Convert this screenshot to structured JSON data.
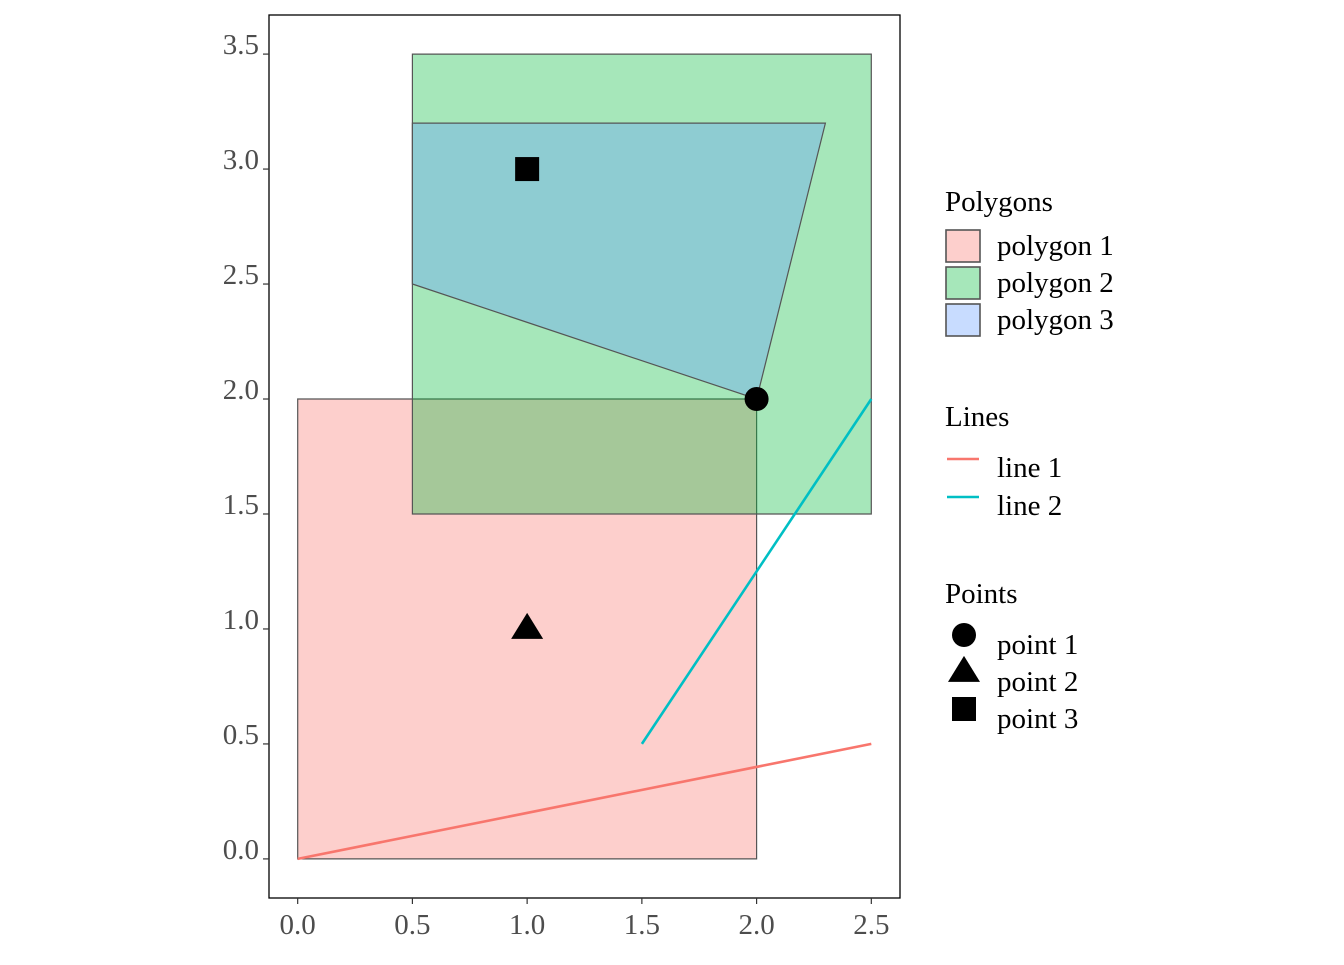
{
  "chart_data": {
    "type": "map",
    "xlim": [
      -0.125,
      2.625
    ],
    "ylim": [
      -0.17,
      3.67
    ],
    "x_ticks": [
      {
        "value": 0.0,
        "label": "0.0"
      },
      {
        "value": 0.5,
        "label": "0.5"
      },
      {
        "value": 1.0,
        "label": "1.0"
      },
      {
        "value": 1.5,
        "label": "1.5"
      },
      {
        "value": 2.0,
        "label": "2.0"
      },
      {
        "value": 2.5,
        "label": "2.5"
      }
    ],
    "y_ticks": [
      {
        "value": 0.0,
        "label": "0.0"
      },
      {
        "value": 0.5,
        "label": "0.5"
      },
      {
        "value": 1.0,
        "label": "1.0"
      },
      {
        "value": 1.5,
        "label": "1.5"
      },
      {
        "value": 2.0,
        "label": "2.0"
      },
      {
        "value": 2.5,
        "label": "2.5"
      },
      {
        "value": 3.0,
        "label": "3.0"
      },
      {
        "value": 3.5,
        "label": "3.5"
      }
    ],
    "grid": false,
    "legend_position": "right",
    "polygons": [
      {
        "name": "polygon 1",
        "fill": "#f8766d",
        "coords": [
          [
            0,
            0
          ],
          [
            2,
            0
          ],
          [
            2,
            2
          ],
          [
            0,
            2
          ]
        ]
      },
      {
        "name": "polygon 2",
        "fill": "#00ba38",
        "coords": [
          [
            0.5,
            1.5
          ],
          [
            2.5,
            1.5
          ],
          [
            2.5,
            3.5
          ],
          [
            0.5,
            3.5
          ]
        ]
      },
      {
        "name": "polygon 3",
        "fill": "#619cff",
        "coords": [
          [
            0.5,
            2.5
          ],
          [
            2,
            2
          ],
          [
            2.3,
            3.2
          ],
          [
            0.5,
            3.2
          ]
        ]
      }
    ],
    "polygon_alpha": 0.35,
    "polygon_stroke": "#555555",
    "lines": [
      {
        "name": "line 1",
        "color": "#f8766d",
        "coords": [
          [
            0,
            0
          ],
          [
            2.5,
            0.5
          ]
        ]
      },
      {
        "name": "line 2",
        "color": "#00bfc4",
        "coords": [
          [
            1.5,
            0.5
          ],
          [
            2.5,
            2
          ]
        ]
      }
    ],
    "points": [
      {
        "name": "point 1",
        "shape": "circle",
        "x": 2,
        "y": 2
      },
      {
        "name": "point 2",
        "shape": "triangle",
        "x": 1,
        "y": 1
      },
      {
        "name": "point 3",
        "shape": "square",
        "x": 1,
        "y": 3
      }
    ],
    "legend": {
      "polygons_title": "Polygons",
      "lines_title": "Lines",
      "points_title": "Points"
    }
  }
}
